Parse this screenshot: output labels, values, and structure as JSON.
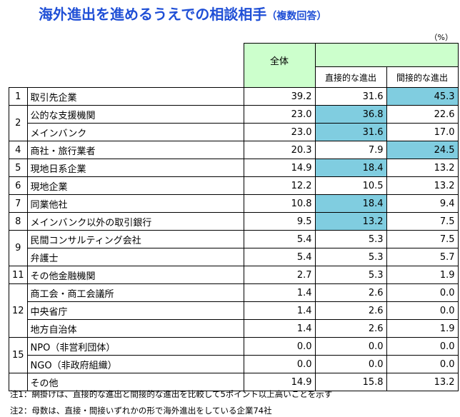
{
  "title": "海外進出を進めるうえでの相談相手",
  "title_sub": "（複数回答）",
  "unit": "（%）",
  "headers": {
    "total": "全体",
    "direct": "直接的な進出",
    "indirect": "間接的な進出"
  },
  "highlight_color": "#80cde0",
  "rows": [
    {
      "rank": "1",
      "span": 1,
      "name": "取引先企業",
      "total": "39.2",
      "direct": "31.6",
      "indirect": "45.3",
      "hl": "indirect"
    },
    {
      "rank": "2",
      "span": 2,
      "name": "公的な支援機関",
      "total": "23.0",
      "direct": "36.8",
      "indirect": "22.6",
      "hl": "direct"
    },
    {
      "rank": null,
      "name": "メインバンク",
      "total": "23.0",
      "direct": "31.6",
      "indirect": "17.0",
      "hl": "direct"
    },
    {
      "rank": "4",
      "span": 1,
      "name": "商社・旅行業者",
      "total": "20.3",
      "direct": "7.9",
      "indirect": "24.5",
      "hl": "indirect"
    },
    {
      "rank": "5",
      "span": 1,
      "name": "現地日系企業",
      "total": "14.9",
      "direct": "18.4",
      "indirect": "13.2",
      "hl": "direct"
    },
    {
      "rank": "6",
      "span": 1,
      "name": "現地企業",
      "total": "12.2",
      "direct": "10.5",
      "indirect": "13.2",
      "hl": ""
    },
    {
      "rank": "7",
      "span": 1,
      "name": "同業他社",
      "total": "10.8",
      "direct": "18.4",
      "indirect": "9.4",
      "hl": "direct"
    },
    {
      "rank": "8",
      "span": 1,
      "name": "メインバンク以外の取引銀行",
      "total": "9.5",
      "direct": "13.2",
      "indirect": "7.5",
      "hl": "direct"
    },
    {
      "rank": "9",
      "span": 2,
      "name": "民間コンサルティング会社",
      "total": "5.4",
      "direct": "5.3",
      "indirect": "7.5",
      "hl": ""
    },
    {
      "rank": null,
      "name": "弁護士",
      "total": "5.4",
      "direct": "5.3",
      "indirect": "5.7",
      "hl": ""
    },
    {
      "rank": "11",
      "span": 1,
      "name": "その他金融機関",
      "total": "2.7",
      "direct": "5.3",
      "indirect": "1.9",
      "hl": ""
    },
    {
      "rank": "12",
      "span": 3,
      "name": "商工会・商工会議所",
      "total": "1.4",
      "direct": "2.6",
      "indirect": "0.0",
      "hl": ""
    },
    {
      "rank": null,
      "name": "中央省庁",
      "total": "1.4",
      "direct": "2.6",
      "indirect": "0.0",
      "hl": ""
    },
    {
      "rank": null,
      "name": "地方自治体",
      "total": "1.4",
      "direct": "2.6",
      "indirect": "1.9",
      "hl": ""
    },
    {
      "rank": "15",
      "span": 2,
      "name": "NPO（非営利団体）",
      "total": "0.0",
      "direct": "0.0",
      "indirect": "0.0",
      "hl": ""
    },
    {
      "rank": null,
      "name": "NGO（非政府組織）",
      "total": "0.0",
      "direct": "0.0",
      "indirect": "0.0",
      "hl": ""
    },
    {
      "rank": "",
      "span": 1,
      "name": "その他",
      "total": "14.9",
      "direct": "15.8",
      "indirect": "13.2",
      "hl": ""
    }
  ],
  "notes": [
    "注1：網掛けは、直接的な進出と間接的な進出を比較して5ポイント以上高いことを示す",
    "注2：母数は、直接・間接いずれかの形で海外進出をしている企業74社"
  ]
}
